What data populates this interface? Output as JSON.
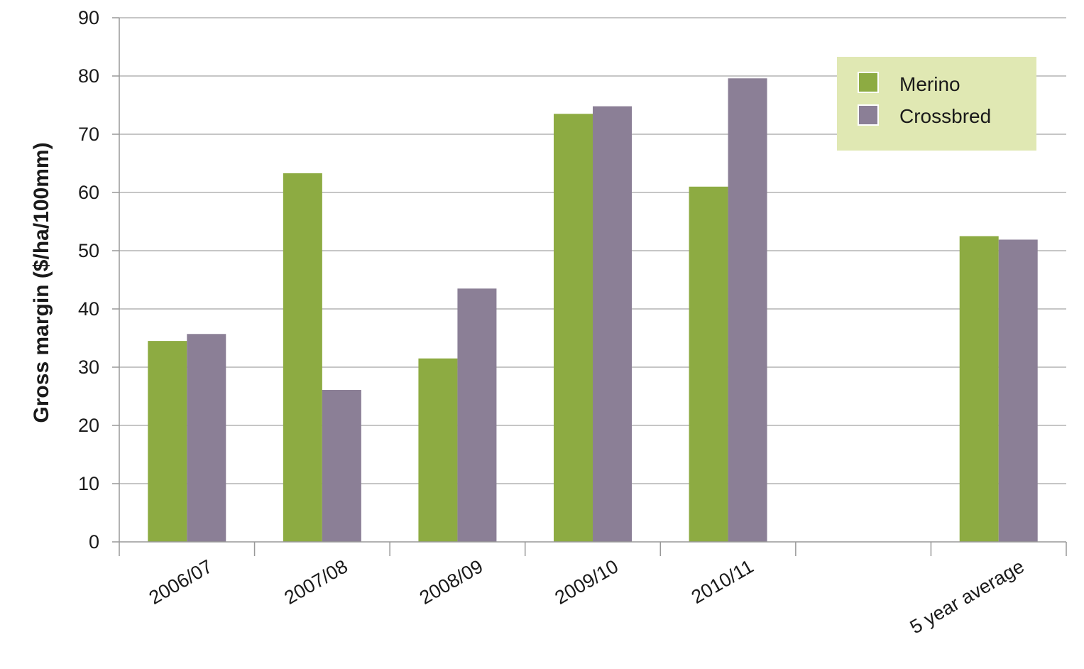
{
  "chart_data": {
    "type": "bar",
    "title": "",
    "xlabel": "",
    "ylabel": "Gross margin ($/ha/100mm)",
    "ylim": [
      0,
      90
    ],
    "yticks": [
      0,
      10,
      20,
      30,
      40,
      50,
      60,
      70,
      80,
      90
    ],
    "grid": true,
    "legend_position": "top-right",
    "categories": [
      "2006/07",
      "2007/08",
      "2008/09",
      "2009/10",
      "2010/11",
      "",
      "5 year average"
    ],
    "series": [
      {
        "name": "Merino",
        "color": "#8dab42",
        "values": [
          34.5,
          63.3,
          31.5,
          73.5,
          61.0,
          null,
          52.5
        ]
      },
      {
        "name": "Crossbred",
        "color": "#8b7f96",
        "values": [
          35.7,
          26.1,
          43.5,
          74.8,
          79.6,
          null,
          51.9
        ]
      }
    ]
  },
  "colors": {
    "grid": "#b3b3b3",
    "axis": "#999999",
    "legend_background": "#e0e8b3"
  }
}
